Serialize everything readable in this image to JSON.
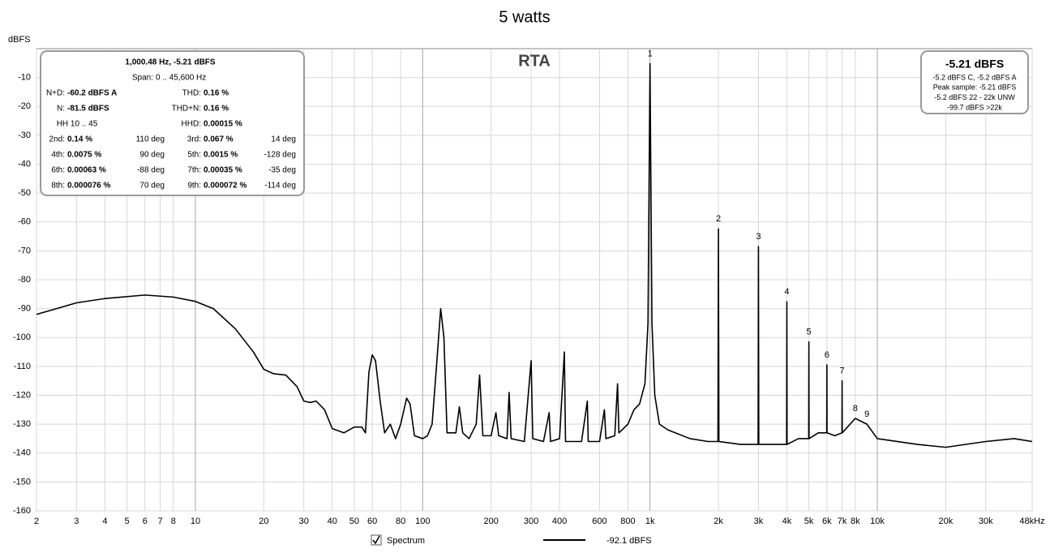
{
  "chart_data": {
    "type": "line",
    "title": "5 watts",
    "plot_label": "RTA",
    "y_label": "dBFS",
    "x_log": true,
    "grid": true,
    "xlim": [
      2,
      48000
    ],
    "ylim": [
      -160,
      0
    ],
    "xticks": [
      2,
      3,
      4,
      5,
      6,
      7,
      8,
      10,
      20,
      30,
      40,
      50,
      60,
      80,
      100,
      200,
      300,
      400,
      600,
      800,
      {
        "value": 1000,
        "label": "1k"
      },
      {
        "value": 2000,
        "label": "2k"
      },
      {
        "value": 3000,
        "label": "3k"
      },
      {
        "value": 4000,
        "label": "4k"
      },
      {
        "value": 5000,
        "label": "5k"
      },
      {
        "value": 6000,
        "label": "6k"
      },
      {
        "value": 7000,
        "label": "7k"
      },
      {
        "value": 8000,
        "label": "8k"
      },
      {
        "value": 10000,
        "label": "10k"
      },
      {
        "value": 20000,
        "label": "20k"
      },
      {
        "value": 30000,
        "label": "30k"
      },
      {
        "value": 48000,
        "label": "48kHz"
      }
    ],
    "yticks": [
      -10,
      -20,
      -30,
      -40,
      -50,
      -60,
      -70,
      -80,
      -90,
      -100,
      -110,
      -120,
      -130,
      -140,
      -150,
      -160
    ],
    "x": [
      2,
      3,
      4,
      6,
      8,
      10,
      12,
      15,
      18,
      20,
      22,
      25,
      28,
      30,
      32,
      34,
      37,
      40,
      45,
      50,
      54,
      56,
      58,
      60,
      62,
      65,
      68,
      72,
      76,
      80,
      85,
      88,
      92,
      100,
      105,
      110,
      115,
      120,
      124,
      128,
      140,
      145,
      150,
      160,
      172,
      178,
      184,
      200,
      210,
      216,
      235,
      240,
      245,
      280,
      300,
      305,
      340,
      360,
      365,
      400,
      420,
      425,
      500,
      530,
      535,
      600,
      630,
      640,
      700,
      720,
      730,
      800,
      850,
      900,
      950,
      980,
      1000,
      1020,
      1050,
      1100,
      1200,
      1500,
      1800,
      1990,
      2000,
      2010,
      2500,
      2990,
      3000,
      3010,
      3500,
      3990,
      4000,
      4010,
      4500,
      4990,
      5000,
      5010,
      5500,
      5990,
      6000,
      6010,
      6500,
      6990,
      7000,
      7010,
      8000,
      9000,
      10000,
      15000,
      20000,
      30000,
      40000,
      48000
    ],
    "series": [
      {
        "name": "Spectrum",
        "color": "#000000",
        "legend_value": "-92.1 dBFS",
        "values": [
          -92,
          -88,
          -86.5,
          -85.3,
          -86,
          -87.5,
          -90,
          -97,
          -105,
          -111,
          -112.5,
          -113,
          -117,
          -122,
          -122.5,
          -122,
          -125,
          -131.5,
          -133,
          -131,
          -131,
          -133,
          -112,
          -106,
          -108,
          -122,
          -133,
          -130,
          -135,
          -130,
          -121,
          -123,
          -134,
          -135,
          -134,
          -130,
          -110,
          -90,
          -100,
          -133,
          -133,
          -124,
          -133,
          -135,
          -130,
          -113,
          -134,
          -134,
          -126,
          -134,
          -135,
          -119,
          -135,
          -136,
          -108,
          -135,
          -136,
          -126,
          -136,
          -135,
          -105,
          -136,
          -136,
          -122,
          -136,
          -136,
          -125,
          -135,
          -134,
          -116,
          -133,
          -130,
          -125,
          -123,
          -116,
          -95,
          -5.2,
          -95,
          -120,
          -130,
          -132,
          -135,
          -136,
          -136,
          -62.4,
          -136,
          -137,
          -137,
          -68.5,
          -137,
          -137,
          -137,
          -87.6,
          -137,
          -135,
          -135,
          -101.5,
          -135,
          -133,
          -133,
          -109.5,
          -133,
          -134,
          -133,
          -115,
          -133,
          -128,
          -130,
          -135,
          -137,
          -138,
          -136,
          -135,
          -136
        ]
      }
    ],
    "annotations": [
      {
        "text": "1",
        "x": 1000
      },
      {
        "text": "2",
        "x": 2000
      },
      {
        "text": "3",
        "x": 3000
      },
      {
        "text": "4",
        "x": 4000
      },
      {
        "text": "5",
        "x": 5000
      },
      {
        "text": "6",
        "x": 6000
      },
      {
        "text": "7",
        "x": 7000
      },
      {
        "text": "8",
        "x": 8000
      },
      {
        "text": "9",
        "x": 9000
      }
    ],
    "info_panel": {
      "header": "1,000.48 Hz, -5.21 dBFS",
      "span_label": "Span:",
      "span": "0 .. 45,600 Hz",
      "items": [
        {
          "label": "N+D:",
          "value": "-60.2 dBFS A"
        },
        {
          "label": "THD:",
          "value": "0.16 %"
        },
        {
          "label": "N:",
          "value": "-81.5 dBFS"
        },
        {
          "label": "THD+N:",
          "value": "0.16 %"
        },
        {
          "label": "HH 10 .. 45"
        },
        {
          "label": "HHD:",
          "value": "0.00015 %"
        },
        {
          "label": "2nd:",
          "value": "0.14 %",
          "phase": "110 deg"
        },
        {
          "label": "3rd:",
          "value": "0.067 %",
          "phase": "14 deg"
        },
        {
          "label": "4th:",
          "value": "0.0075 %",
          "phase": "90 deg"
        },
        {
          "label": "5th:",
          "value": "0.0015 %",
          "phase": "-128 deg"
        },
        {
          "label": "6th:",
          "value": "0.00063 %",
          "phase": "-88 deg"
        },
        {
          "label": "7th:",
          "value": "0.00035 %",
          "phase": "-35 deg"
        },
        {
          "label": "8th:",
          "value": "0.000076 %",
          "phase": "70 deg"
        },
        {
          "label": "9th:",
          "value": "0.000072 %",
          "phase": "-114 deg"
        }
      ]
    },
    "level_panel": {
      "level": "-5.21 dBFS",
      "lines": [
        "-5.2 dBFS C, -5.2 dBFS A",
        "Peak sample: -5.21 dBFS",
        "-5.2 dBFS 22 - 22k UNW",
        "-99.7 dBFS >22k"
      ]
    }
  }
}
